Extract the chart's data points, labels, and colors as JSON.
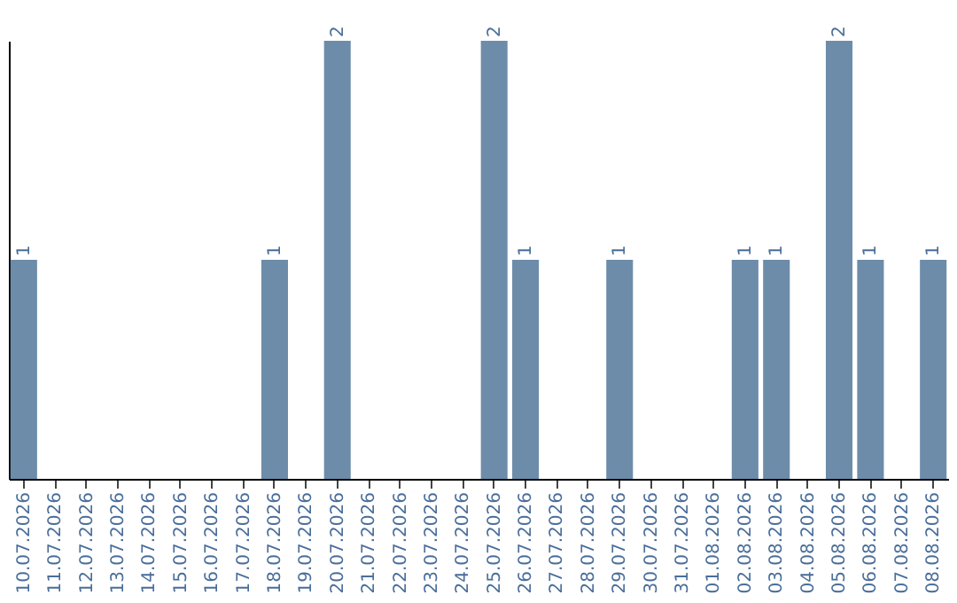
{
  "chart_data": {
    "type": "bar",
    "categories": [
      "10.07.2026",
      "11.07.2026",
      "12.07.2026",
      "13.07.2026",
      "14.07.2026",
      "15.07.2026",
      "16.07.2026",
      "17.07.2026",
      "18.07.2026",
      "19.07.2026",
      "20.07.2026",
      "21.07.2026",
      "22.07.2026",
      "23.07.2026",
      "24.07.2026",
      "25.07.2026",
      "26.07.2026",
      "27.07.2026",
      "28.07.2026",
      "29.07.2026",
      "30.07.2026",
      "31.07.2026",
      "01.08.2026",
      "02.08.2026",
      "03.08.2026",
      "04.08.2026",
      "05.08.2026",
      "06.08.2026",
      "07.08.2026",
      "08.08.2026"
    ],
    "values": [
      1,
      0,
      0,
      0,
      0,
      0,
      0,
      0,
      1,
      0,
      2,
      0,
      0,
      0,
      0,
      2,
      1,
      0,
      0,
      1,
      0,
      0,
      0,
      1,
      1,
      0,
      2,
      1,
      0,
      1
    ],
    "value_labels": [
      "1",
      null,
      null,
      null,
      null,
      null,
      null,
      null,
      "1",
      null,
      "2",
      null,
      null,
      null,
      null,
      "2",
      "1",
      null,
      null,
      "1",
      null,
      null,
      null,
      "1",
      "1",
      null,
      "2",
      "1",
      null,
      "1"
    ],
    "color": "#6d8caa",
    "ylim": [
      0,
      2
    ],
    "tick_labels": "x"
  }
}
